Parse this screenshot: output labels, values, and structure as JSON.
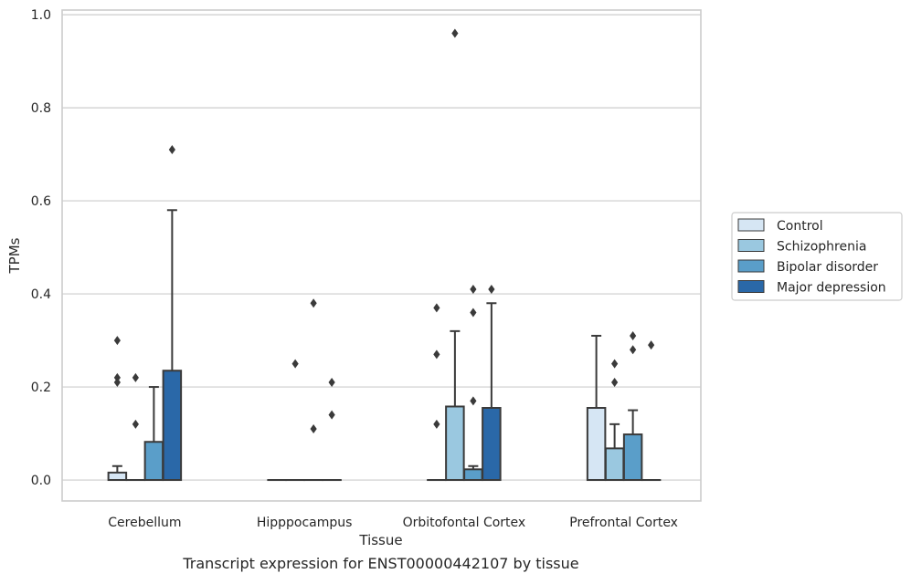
{
  "chart_data": {
    "type": "box",
    "title": "",
    "caption": "Transcript expression for ENST00000442107 by tissue",
    "xlabel": "Tissue",
    "ylabel": "TPMs",
    "ylim": [
      -0.045,
      1.01
    ],
    "yticks": [
      "0.0",
      "0.2",
      "0.4",
      "0.6",
      "0.8",
      "1.0"
    ],
    "ytick_values": [
      0.0,
      0.2,
      0.4,
      0.6,
      0.8,
      1.0
    ],
    "grid": true,
    "legend_position": "right",
    "categories": [
      "Cerebellum",
      "Hipppocampus",
      "Orbitofontal Cortex",
      "Prefrontal Cortex"
    ],
    "series": [
      {
        "name": "Control",
        "color": "#d6e6f4",
        "boxes": [
          {
            "q1": 0.0,
            "median": 0.0,
            "q3": 0.016,
            "whisker_low": 0.0,
            "whisker_high": 0.03,
            "fliers": [
              0.21,
              0.22,
              0.3
            ]
          },
          {
            "q1": 0.0,
            "median": 0.0,
            "q3": 0.0,
            "whisker_low": 0.0,
            "whisker_high": 0.0,
            "fliers": []
          },
          {
            "q1": 0.0,
            "median": 0.0,
            "q3": 0.0,
            "whisker_low": 0.0,
            "whisker_high": 0.0,
            "fliers": [
              0.12,
              0.27,
              0.37
            ]
          },
          {
            "q1": 0.0,
            "median": 0.0,
            "q3": 0.155,
            "whisker_low": 0.0,
            "whisker_high": 0.31,
            "fliers": []
          }
        ]
      },
      {
        "name": "Schizophrenia",
        "color": "#9ac8e0",
        "boxes": [
          {
            "q1": 0.0,
            "median": 0.0,
            "q3": 0.0,
            "whisker_low": 0.0,
            "whisker_high": 0.0,
            "fliers": [
              0.12,
              0.22
            ]
          },
          {
            "q1": 0.0,
            "median": 0.0,
            "q3": 0.0,
            "whisker_low": 0.0,
            "whisker_high": 0.0,
            "fliers": [
              0.25
            ]
          },
          {
            "q1": 0.0,
            "median": 0.0,
            "q3": 0.158,
            "whisker_low": 0.0,
            "whisker_high": 0.32,
            "fliers": [
              0.96
            ]
          },
          {
            "q1": 0.0,
            "median": 0.0,
            "q3": 0.068,
            "whisker_low": 0.0,
            "whisker_high": 0.12,
            "fliers": [
              0.21,
              0.25
            ]
          }
        ]
      },
      {
        "name": "Bipolar disorder",
        "color": "#5a9ec9",
        "boxes": [
          {
            "q1": 0.0,
            "median": 0.0,
            "q3": 0.082,
            "whisker_low": 0.0,
            "whisker_high": 0.2,
            "fliers": []
          },
          {
            "q1": 0.0,
            "median": 0.0,
            "q3": 0.0,
            "whisker_low": 0.0,
            "whisker_high": 0.0,
            "fliers": [
              0.11,
              0.38
            ]
          },
          {
            "q1": 0.0,
            "median": 0.0,
            "q3": 0.023,
            "whisker_low": 0.0,
            "whisker_high": 0.03,
            "fliers": [
              0.17,
              0.36,
              0.41
            ]
          },
          {
            "q1": 0.0,
            "median": 0.0,
            "q3": 0.098,
            "whisker_low": 0.0,
            "whisker_high": 0.15,
            "fliers": [
              0.28,
              0.31
            ]
          }
        ]
      },
      {
        "name": "Major depression",
        "color": "#2a68a8",
        "boxes": [
          {
            "q1": 0.0,
            "median": 0.0,
            "q3": 0.235,
            "whisker_low": 0.0,
            "whisker_high": 0.58,
            "fliers": [
              0.71
            ]
          },
          {
            "q1": 0.0,
            "median": 0.0,
            "q3": 0.0,
            "whisker_low": 0.0,
            "whisker_high": 0.0,
            "fliers": [
              0.14,
              0.21
            ]
          },
          {
            "q1": 0.0,
            "median": 0.0,
            "q3": 0.155,
            "whisker_low": 0.0,
            "whisker_high": 0.38,
            "fliers": [
              0.41
            ]
          },
          {
            "q1": 0.0,
            "median": 0.0,
            "q3": 0.0,
            "whisker_low": 0.0,
            "whisker_high": 0.0,
            "fliers": [
              0.29
            ]
          }
        ]
      }
    ]
  }
}
